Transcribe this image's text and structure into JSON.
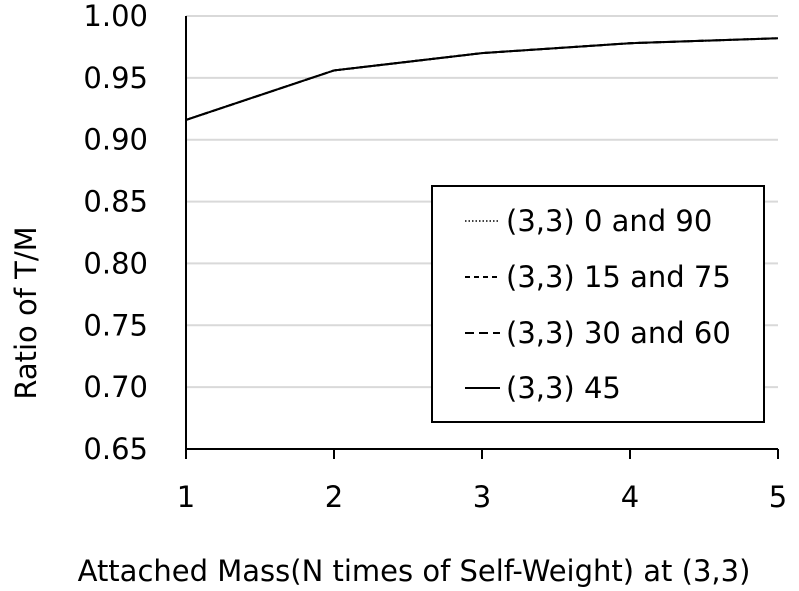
{
  "chart_data": {
    "type": "line",
    "xlabel": "Attached Mass(N times of Self-Weight) at (3,3)",
    "ylabel": "Ratio of  T/M",
    "x": [
      1,
      2,
      3,
      4,
      5
    ],
    "x_ticks": [
      "1",
      "2",
      "3",
      "4",
      "5"
    ],
    "y_ticks": [
      "1.00",
      "0.95",
      "0.90",
      "0.85",
      "0.80",
      "0.75",
      "0.70",
      "0.65"
    ],
    "xlim": [
      1,
      5
    ],
    "ylim": [
      0.65,
      1.0
    ],
    "grid": "horizontal",
    "legend_position": "bottom-right",
    "series": [
      {
        "name": "(3,3) 0 and 90",
        "style": "dotted",
        "values": [
          0.916,
          0.956,
          0.97,
          0.978,
          0.982
        ]
      },
      {
        "name": "(3,3) 15 and 75",
        "style": "dashed",
        "values": [
          0.916,
          0.956,
          0.97,
          0.978,
          0.982
        ]
      },
      {
        "name": "(3,3) 30 and 60",
        "style": "longdash",
        "values": [
          0.916,
          0.956,
          0.97,
          0.978,
          0.982
        ]
      },
      {
        "name": "(3,3) 45",
        "style": "solid",
        "values": [
          0.916,
          0.956,
          0.97,
          0.978,
          0.982
        ]
      }
    ]
  }
}
